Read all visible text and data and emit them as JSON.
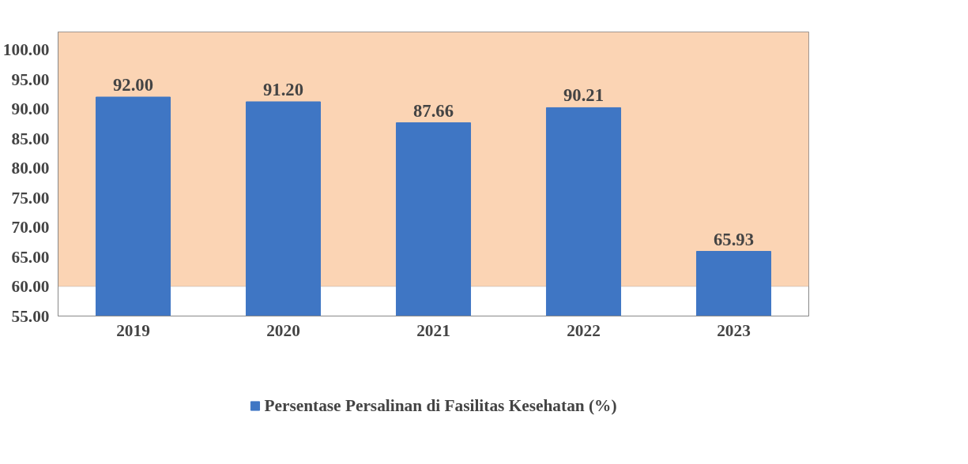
{
  "chart_data": {
    "type": "bar",
    "categories": [
      "2019",
      "2020",
      "2021",
      "2022",
      "2023"
    ],
    "series": [
      {
        "name": "Persentase Persalinan di Fasilitas Kesehatan (%)",
        "color": "#3f76c4",
        "values": [
          92.0,
          91.2,
          87.66,
          90.21,
          65.93
        ]
      }
    ],
    "ylim": [
      55,
      103
    ],
    "yticks": [
      {
        "value": 55,
        "label": "55.00"
      },
      {
        "value": 60,
        "label": "60.00"
      },
      {
        "value": 65,
        "label": "65.00"
      },
      {
        "value": 70,
        "label": "70.00"
      },
      {
        "value": 75,
        "label": "75.00"
      },
      {
        "value": 80,
        "label": "80.00"
      },
      {
        "value": 85,
        "label": "85.00"
      },
      {
        "value": 90,
        "label": "90.00"
      },
      {
        "value": 95,
        "label": "95.00"
      },
      {
        "value": 100,
        "label": "100.00"
      }
    ],
    "bands": [
      {
        "axis": "y",
        "from": 60,
        "to": 103,
        "color": "#fbd4b4"
      }
    ],
    "value_labels": [
      "92.00",
      "91.20",
      "87.66",
      "90.21",
      "65.93"
    ],
    "legend": "bottom",
    "grid": false
  }
}
